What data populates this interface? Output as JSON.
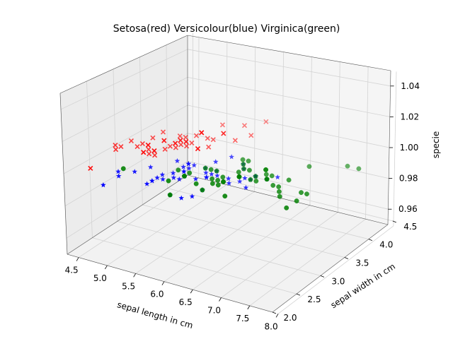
{
  "chart_data": {
    "type": "scatter",
    "projection": "3d",
    "title": "Setosa(red)  Versicolour(blue)   Virginica(green)",
    "xlabel": "sepal length in cm",
    "ylabel": "sepal width in cm",
    "zlabel": "specie",
    "xlim": [
      4.3,
      7.9
    ],
    "ylim": [
      2.0,
      4.4
    ],
    "zlim": [
      0.95,
      1.05
    ],
    "x_ticks": [
      "4.5",
      "5.0",
      "5.5",
      "6.0",
      "6.5",
      "7.0",
      "7.5",
      "8.0"
    ],
    "y_ticks": [
      "2.0",
      "2.5",
      "3.0",
      "3.5",
      "4.0",
      "4.5"
    ],
    "z_ticks": [
      "0.96",
      "0.98",
      "1.00",
      "1.02",
      "1.04"
    ],
    "grid": true,
    "series": [
      {
        "marker": "x",
        "color": "#ff0000",
        "x": [
          5.1,
          4.9,
          4.7,
          4.6,
          5.0,
          5.4,
          4.6,
          5.0,
          4.4,
          4.9,
          5.4,
          4.8,
          4.8,
          4.3,
          5.8,
          5.7,
          5.4,
          5.1,
          5.7,
          5.1,
          5.4,
          5.1,
          4.6,
          5.1,
          4.8,
          5.0,
          5.0,
          5.2,
          5.2,
          4.7,
          4.8,
          5.4,
          5.2,
          5.5,
          4.9,
          5.0,
          5.5,
          4.9,
          4.4,
          5.1,
          5.0,
          4.5,
          4.4,
          5.0,
          5.1,
          4.8,
          5.1,
          4.6,
          5.3,
          5.0
        ],
        "y": [
          3.5,
          3.0,
          3.2,
          3.1,
          3.6,
          3.9,
          3.4,
          3.4,
          2.9,
          3.1,
          3.7,
          3.4,
          3.0,
          3.0,
          4.0,
          4.4,
          3.9,
          3.5,
          3.8,
          3.8,
          3.4,
          3.7,
          3.6,
          3.3,
          3.4,
          3.0,
          3.4,
          3.5,
          3.4,
          3.2,
          3.1,
          3.4,
          4.1,
          4.2,
          3.1,
          3.2,
          3.5,
          3.6,
          3.0,
          3.4,
          3.5,
          2.3,
          3.2,
          3.5,
          3.8,
          3.0,
          3.8,
          3.2,
          3.7,
          3.3
        ],
        "z": [
          1,
          1,
          1,
          1,
          1,
          1,
          1,
          1,
          1,
          1,
          1,
          1,
          1,
          1,
          1,
          1,
          1,
          1,
          1,
          1,
          1,
          1,
          1,
          1,
          1,
          1,
          1,
          1,
          1,
          1,
          1,
          1,
          1,
          1,
          1,
          1,
          1,
          1,
          1,
          1,
          1,
          1,
          1,
          1,
          1,
          1,
          1,
          1,
          1,
          1
        ]
      },
      {
        "marker": "*",
        "color": "#0000ff",
        "x": [
          7.0,
          6.4,
          6.9,
          5.5,
          6.5,
          5.7,
          6.3,
          4.9,
          6.6,
          5.2,
          5.0,
          5.9,
          6.0,
          6.1,
          5.6,
          6.7,
          5.6,
          5.8,
          6.2,
          5.6,
          5.9,
          6.1,
          6.3,
          6.1,
          6.4,
          6.6,
          6.8,
          6.7,
          6.0,
          5.7,
          5.5,
          5.5,
          5.8,
          6.0,
          5.4,
          6.0,
          6.7,
          6.3,
          5.6,
          5.5,
          5.5,
          6.1,
          5.8,
          5.0,
          5.6,
          5.7,
          5.7,
          6.2,
          5.1,
          5.7
        ],
        "y": [
          3.2,
          3.2,
          3.1,
          2.3,
          2.8,
          2.8,
          3.3,
          2.4,
          2.9,
          2.7,
          2.0,
          3.0,
          2.2,
          2.9,
          2.9,
          3.1,
          3.0,
          2.7,
          2.2,
          2.5,
          3.2,
          2.8,
          2.5,
          2.8,
          2.9,
          3.0,
          2.8,
          3.0,
          2.9,
          2.6,
          2.4,
          2.4,
          2.7,
          2.7,
          3.0,
          3.4,
          3.1,
          2.3,
          3.0,
          2.5,
          2.6,
          3.0,
          2.6,
          2.3,
          2.7,
          3.0,
          2.9,
          2.9,
          2.5,
          2.8
        ],
        "z": [
          1,
          1,
          1,
          1,
          1,
          1,
          1,
          1,
          1,
          1,
          1,
          1,
          1,
          1,
          1,
          1,
          1,
          1,
          1,
          1,
          1,
          1,
          1,
          1,
          1,
          1,
          1,
          1,
          1,
          1,
          1,
          1,
          1,
          1,
          1,
          1,
          1,
          1,
          1,
          1,
          1,
          1,
          1,
          1,
          1,
          1,
          1,
          1,
          1,
          1
        ]
      },
      {
        "marker": "o",
        "color": "#008000",
        "x": [
          6.3,
          5.8,
          7.1,
          6.3,
          6.5,
          7.6,
          4.9,
          7.3,
          6.7,
          7.2,
          6.5,
          6.4,
          6.8,
          5.7,
          5.8,
          6.4,
          6.5,
          7.7,
          7.7,
          6.0,
          6.9,
          5.6,
          7.7,
          6.3,
          6.7,
          7.2,
          6.2,
          6.1,
          6.4,
          7.2,
          7.4,
          7.9,
          6.4,
          6.3,
          6.1,
          7.7,
          6.3,
          6.4,
          6.0,
          6.9,
          6.7,
          6.9,
          5.8,
          6.8,
          6.7,
          6.7,
          6.3,
          6.5,
          6.2,
          5.9
        ],
        "y": [
          3.3,
          2.7,
          3.0,
          2.9,
          3.0,
          3.0,
          2.5,
          2.9,
          2.5,
          3.6,
          3.2,
          2.7,
          3.0,
          2.5,
          2.8,
          3.2,
          3.0,
          3.8,
          2.6,
          2.2,
          3.2,
          2.8,
          2.8,
          2.7,
          3.3,
          3.2,
          2.8,
          3.0,
          2.8,
          3.0,
          2.8,
          3.8,
          2.8,
          2.8,
          2.6,
          3.0,
          3.4,
          3.1,
          3.0,
          3.1,
          3.1,
          3.1,
          2.7,
          3.2,
          3.3,
          3.0,
          2.5,
          3.0,
          3.4,
          3.0
        ],
        "z": [
          1,
          1,
          1,
          1,
          1,
          1,
          1,
          1,
          1,
          1,
          1,
          1,
          1,
          1,
          1,
          1,
          1,
          1,
          1,
          1,
          1,
          1,
          1,
          1,
          1,
          1,
          1,
          1,
          1,
          1,
          1,
          1,
          1,
          1,
          1,
          1,
          1,
          1,
          1,
          1,
          1,
          1,
          1,
          1,
          1,
          1,
          1,
          1,
          1,
          1
        ]
      }
    ]
  }
}
